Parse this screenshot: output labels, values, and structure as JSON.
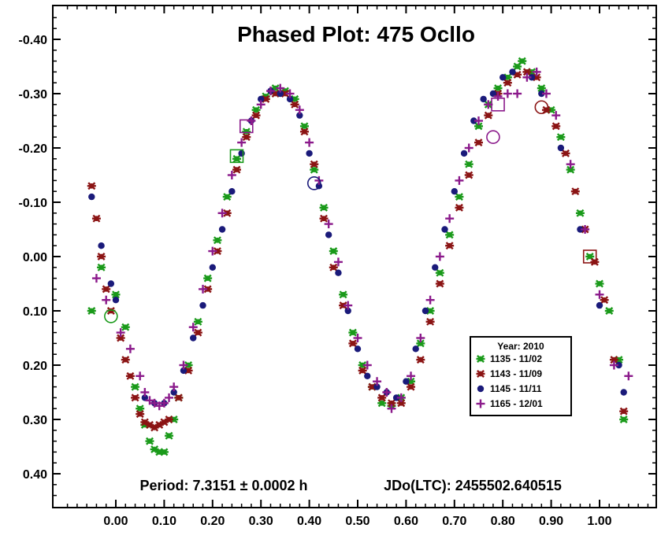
{
  "chart_data": {
    "type": "scatter",
    "title": "Phased Plot: 475 Ocllo",
    "annotations": {
      "period": "Period: 7.3151 ± 0.0002 h",
      "jdo": "JDo(LTC): 2455502.640515"
    },
    "xlabel": "",
    "ylabel": "",
    "xlim": [
      -0.13,
      1.13
    ],
    "ylim": [
      -0.46,
      0.46
    ],
    "y_inverted": true,
    "x_ticks": [
      "0.00",
      "0.10",
      "0.20",
      "0.30",
      "0.40",
      "0.50",
      "0.60",
      "0.70",
      "0.80",
      "0.90",
      "1.00"
    ],
    "y_ticks": [
      "-0.40",
      "-0.30",
      "-0.20",
      "-0.10",
      "0.00",
      "0.10",
      "0.20",
      "0.30",
      "0.40"
    ],
    "legend": {
      "title": "Year: 2010",
      "placement": "lower-right"
    },
    "series": [
      {
        "name": "1135 - 11/02",
        "marker": "asterisk",
        "color": "#1a9a1a",
        "points": [
          [
            -0.05,
            0.1
          ],
          [
            -0.03,
            0.02
          ],
          [
            0.0,
            0.07
          ],
          [
            0.02,
            0.13
          ],
          [
            0.04,
            0.24
          ],
          [
            0.05,
            0.28
          ],
          [
            0.06,
            0.31
          ],
          [
            0.07,
            0.34
          ],
          [
            0.08,
            0.355
          ],
          [
            0.09,
            0.36
          ],
          [
            0.1,
            0.36
          ],
          [
            0.11,
            0.33
          ],
          [
            0.12,
            0.3
          ],
          [
            0.13,
            0.26
          ],
          [
            0.15,
            0.2
          ],
          [
            0.17,
            0.12
          ],
          [
            0.19,
            0.04
          ],
          [
            0.21,
            -0.03
          ],
          [
            0.23,
            -0.11
          ],
          [
            0.25,
            -0.18
          ],
          [
            0.27,
            -0.23
          ],
          [
            0.29,
            -0.27
          ],
          [
            0.31,
            -0.295
          ],
          [
            0.33,
            -0.31
          ],
          [
            0.35,
            -0.305
          ],
          [
            0.37,
            -0.29
          ],
          [
            0.39,
            -0.24
          ],
          [
            0.41,
            -0.16
          ],
          [
            0.43,
            -0.09
          ],
          [
            0.45,
            -0.01
          ],
          [
            0.47,
            0.07
          ],
          [
            0.49,
            0.14
          ],
          [
            0.51,
            0.2
          ],
          [
            0.53,
            0.24
          ],
          [
            0.55,
            0.27
          ],
          [
            0.57,
            0.275
          ],
          [
            0.59,
            0.26
          ],
          [
            0.61,
            0.23
          ],
          [
            0.63,
            0.16
          ],
          [
            0.65,
            0.1
          ],
          [
            0.67,
            0.03
          ],
          [
            0.69,
            -0.04
          ],
          [
            0.71,
            -0.11
          ],
          [
            0.73,
            -0.17
          ],
          [
            0.75,
            -0.24
          ],
          [
            0.77,
            -0.28
          ],
          [
            0.79,
            -0.31
          ],
          [
            0.81,
            -0.33
          ],
          [
            0.83,
            -0.35
          ],
          [
            0.84,
            -0.36
          ],
          [
            0.86,
            -0.34
          ],
          [
            0.88,
            -0.31
          ],
          [
            0.9,
            -0.27
          ],
          [
            0.92,
            -0.22
          ],
          [
            0.94,
            -0.16
          ],
          [
            0.96,
            -0.08
          ],
          [
            0.98,
            0.0
          ],
          [
            1.0,
            0.05
          ],
          [
            1.02,
            0.1
          ],
          [
            1.04,
            0.19
          ],
          [
            1.05,
            0.3
          ]
        ]
      },
      {
        "name": "1143 - 11/09",
        "marker": "asterisk",
        "color": "#8b1414",
        "points": [
          [
            -0.05,
            -0.13
          ],
          [
            -0.04,
            -0.07
          ],
          [
            -0.03,
            0.0
          ],
          [
            -0.02,
            0.06
          ],
          [
            -0.01,
            0.1
          ],
          [
            0.01,
            0.15
          ],
          [
            0.02,
            0.19
          ],
          [
            0.03,
            0.22
          ],
          [
            0.04,
            0.26
          ],
          [
            0.05,
            0.29
          ],
          [
            0.06,
            0.305
          ],
          [
            0.07,
            0.31
          ],
          [
            0.08,
            0.315
          ],
          [
            0.09,
            0.31
          ],
          [
            0.1,
            0.305
          ],
          [
            0.11,
            0.3
          ],
          [
            0.13,
            0.26
          ],
          [
            0.15,
            0.21
          ],
          [
            0.17,
            0.14
          ],
          [
            0.19,
            0.06
          ],
          [
            0.21,
            -0.01
          ],
          [
            0.23,
            -0.08
          ],
          [
            0.25,
            -0.16
          ],
          [
            0.27,
            -0.22
          ],
          [
            0.29,
            -0.26
          ],
          [
            0.31,
            -0.29
          ],
          [
            0.33,
            -0.3
          ],
          [
            0.35,
            -0.3
          ],
          [
            0.37,
            -0.28
          ],
          [
            0.39,
            -0.23
          ],
          [
            0.41,
            -0.17
          ],
          [
            0.43,
            -0.07
          ],
          [
            0.45,
            0.02
          ],
          [
            0.47,
            0.09
          ],
          [
            0.49,
            0.16
          ],
          [
            0.51,
            0.21
          ],
          [
            0.53,
            0.24
          ],
          [
            0.55,
            0.26
          ],
          [
            0.57,
            0.27
          ],
          [
            0.59,
            0.27
          ],
          [
            0.61,
            0.24
          ],
          [
            0.63,
            0.19
          ],
          [
            0.65,
            0.12
          ],
          [
            0.67,
            0.05
          ],
          [
            0.69,
            -0.02
          ],
          [
            0.71,
            -0.09
          ],
          [
            0.73,
            -0.15
          ],
          [
            0.75,
            -0.21
          ],
          [
            0.77,
            -0.26
          ],
          [
            0.79,
            -0.3
          ],
          [
            0.81,
            -0.32
          ],
          [
            0.83,
            -0.335
          ],
          [
            0.85,
            -0.34
          ],
          [
            0.87,
            -0.33
          ],
          [
            0.89,
            -0.27
          ],
          [
            0.91,
            -0.24
          ],
          [
            0.93,
            -0.19
          ],
          [
            0.95,
            -0.12
          ],
          [
            0.97,
            -0.05
          ],
          [
            0.99,
            0.01
          ],
          [
            1.01,
            0.08
          ],
          [
            1.03,
            0.19
          ],
          [
            1.05,
            0.285
          ]
        ]
      },
      {
        "name": "1145 - 11/11",
        "marker": "circle",
        "color": "#1a1a7a",
        "points": [
          [
            -0.05,
            -0.11
          ],
          [
            -0.03,
            -0.02
          ],
          [
            -0.01,
            0.05
          ],
          [
            0.0,
            0.08
          ],
          [
            0.06,
            0.26
          ],
          [
            0.08,
            0.27
          ],
          [
            0.1,
            0.27
          ],
          [
            0.12,
            0.25
          ],
          [
            0.14,
            0.21
          ],
          [
            0.16,
            0.15
          ],
          [
            0.18,
            0.09
          ],
          [
            0.2,
            0.02
          ],
          [
            0.22,
            -0.05
          ],
          [
            0.24,
            -0.12
          ],
          [
            0.26,
            -0.19
          ],
          [
            0.28,
            -0.25
          ],
          [
            0.3,
            -0.29
          ],
          [
            0.32,
            -0.305
          ],
          [
            0.34,
            -0.3
          ],
          [
            0.36,
            -0.29
          ],
          [
            0.38,
            -0.26
          ],
          [
            0.4,
            -0.19
          ],
          [
            0.42,
            -0.13
          ],
          [
            0.44,
            -0.04
          ],
          [
            0.46,
            0.03
          ],
          [
            0.48,
            0.1
          ],
          [
            0.5,
            0.17
          ],
          [
            0.52,
            0.22
          ],
          [
            0.54,
            0.24
          ],
          [
            0.56,
            0.25
          ],
          [
            0.58,
            0.26
          ],
          [
            0.6,
            0.23
          ],
          [
            0.62,
            0.17
          ],
          [
            0.64,
            0.1
          ],
          [
            0.66,
            0.02
          ],
          [
            0.68,
            -0.05
          ],
          [
            0.7,
            -0.12
          ],
          [
            0.72,
            -0.19
          ],
          [
            0.74,
            -0.25
          ],
          [
            0.76,
            -0.29
          ],
          [
            0.78,
            -0.3
          ],
          [
            0.8,
            -0.33
          ],
          [
            0.82,
            -0.34
          ],
          [
            0.86,
            -0.33
          ],
          [
            0.88,
            -0.3
          ],
          [
            0.92,
            -0.2
          ],
          [
            0.96,
            -0.05
          ],
          [
            1.0,
            0.09
          ],
          [
            1.04,
            0.2
          ],
          [
            1.05,
            0.25
          ]
        ]
      },
      {
        "name": "1165 - 12/01",
        "marker": "plus",
        "color": "#8b1a8b",
        "points": [
          [
            -0.04,
            0.04
          ],
          [
            -0.02,
            0.08
          ],
          [
            0.01,
            0.14
          ],
          [
            0.03,
            0.17
          ],
          [
            0.05,
            0.22
          ],
          [
            0.06,
            0.25
          ],
          [
            0.07,
            0.265
          ],
          [
            0.08,
            0.27
          ],
          [
            0.09,
            0.275
          ],
          [
            0.1,
            0.27
          ],
          [
            0.11,
            0.26
          ],
          [
            0.12,
            0.24
          ],
          [
            0.14,
            0.2
          ],
          [
            0.16,
            0.13
          ],
          [
            0.18,
            0.06
          ],
          [
            0.2,
            -0.01
          ],
          [
            0.22,
            -0.08
          ],
          [
            0.24,
            -0.15
          ],
          [
            0.26,
            -0.21
          ],
          [
            0.28,
            -0.25
          ],
          [
            0.3,
            -0.28
          ],
          [
            0.32,
            -0.305
          ],
          [
            0.34,
            -0.31
          ],
          [
            0.36,
            -0.3
          ],
          [
            0.38,
            -0.27
          ],
          [
            0.4,
            -0.21
          ],
          [
            0.42,
            -0.14
          ],
          [
            0.44,
            -0.06
          ],
          [
            0.46,
            0.01
          ],
          [
            0.48,
            0.09
          ],
          [
            0.5,
            0.15
          ],
          [
            0.52,
            0.2
          ],
          [
            0.54,
            0.23
          ],
          [
            0.56,
            0.25
          ],
          [
            0.57,
            0.28
          ],
          [
            0.59,
            0.26
          ],
          [
            0.61,
            0.22
          ],
          [
            0.63,
            0.15
          ],
          [
            0.65,
            0.08
          ],
          [
            0.67,
            0.0
          ],
          [
            0.69,
            -0.07
          ],
          [
            0.71,
            -0.14
          ],
          [
            0.73,
            -0.2
          ],
          [
            0.75,
            -0.25
          ],
          [
            0.77,
            -0.28
          ],
          [
            0.79,
            -0.295
          ],
          [
            0.81,
            -0.3
          ],
          [
            0.83,
            -0.3
          ],
          [
            0.85,
            -0.33
          ],
          [
            0.87,
            -0.34
          ],
          [
            0.89,
            -0.3
          ],
          [
            0.91,
            -0.26
          ],
          [
            0.94,
            -0.17
          ],
          [
            0.97,
            -0.05
          ],
          [
            1.0,
            0.07
          ],
          [
            1.03,
            0.2
          ],
          [
            1.06,
            0.22
          ]
        ]
      }
    ],
    "open_markers": [
      {
        "x": 0.25,
        "y": -0.185,
        "shape": "square",
        "color": "#1a9a1a"
      },
      {
        "x": 0.27,
        "y": -0.24,
        "shape": "square",
        "color": "#8b1a8b"
      },
      {
        "x": 0.41,
        "y": -0.135,
        "shape": "circle",
        "color": "#1a1a7a"
      },
      {
        "x": -0.01,
        "y": 0.11,
        "shape": "circle",
        "color": "#1a9a1a"
      },
      {
        "x": 0.79,
        "y": -0.28,
        "shape": "square",
        "color": "#8b1a8b"
      },
      {
        "x": 0.78,
        "y": -0.22,
        "shape": "circle",
        "color": "#8b1a8b"
      },
      {
        "x": 0.88,
        "y": -0.275,
        "shape": "circle",
        "color": "#8b1414"
      },
      {
        "x": 0.98,
        "y": 0.0,
        "shape": "square",
        "color": "#8b1414"
      }
    ]
  }
}
